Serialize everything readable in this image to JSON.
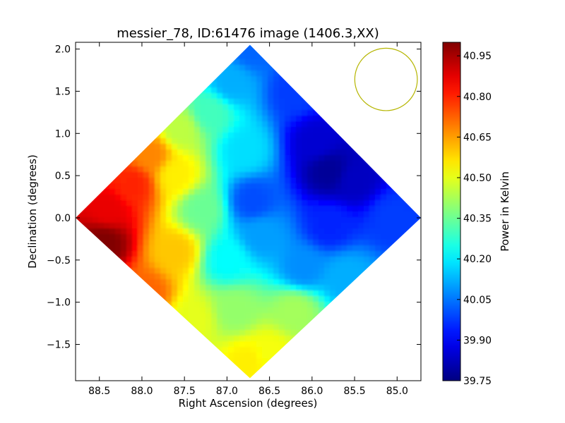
{
  "chart_data": {
    "type": "heatmap",
    "title": "messier_78, ID:61476 image (1406.3,XX)",
    "xlabel": "Right Ascension (degrees)",
    "ylabel": "Declination (degrees)",
    "xlim": [
      88.78,
      84.72
    ],
    "ylim": [
      -1.93,
      2.08
    ],
    "x_ticks": [
      88.5,
      88.0,
      87.5,
      87.0,
      86.5,
      86.0,
      85.5,
      85.0
    ],
    "x_tick_labels": [
      "88.5",
      "88.0",
      "87.5",
      "87.0",
      "86.5",
      "86.0",
      "85.5",
      "85.0"
    ],
    "y_ticks": [
      2.0,
      1.5,
      1.0,
      0.5,
      0.0,
      -0.5,
      -1.0,
      -1.5
    ],
    "y_tick_labels": [
      "2.0",
      "1.5",
      "1.0",
      "0.5",
      "0.0",
      "−0.5",
      "−1.0",
      "−1.5"
    ],
    "colorbar": {
      "label": "Power in Kelvin",
      "colormap": "jet",
      "range": [
        39.75,
        41.0
      ],
      "ticks": [
        40.95,
        40.8,
        40.65,
        40.5,
        40.35,
        40.2,
        40.05,
        39.9,
        39.75
      ],
      "tick_labels": [
        "40.95",
        "40.80",
        "40.65",
        "40.50",
        "40.35",
        "40.20",
        "40.05",
        "39.90",
        "39.75"
      ]
    },
    "footprint": {
      "shape": "diamond",
      "vertices_radec": [
        [
          86.73,
          2.05
        ],
        [
          84.72,
          0.0
        ],
        [
          86.73,
          -1.9
        ],
        [
          88.78,
          0.0
        ]
      ]
    },
    "beam": {
      "center_radec": [
        85.13,
        1.64
      ],
      "radius_deg": 0.37,
      "color": "#b5b500"
    },
    "value_samples": [
      {
        "ra": 88.45,
        "dec": -0.3,
        "value": 41.0
      },
      {
        "ra": 88.4,
        "dec": 0.1,
        "value": 40.87
      },
      {
        "ra": 88.1,
        "dec": 0.4,
        "value": 40.8
      },
      {
        "ra": 87.9,
        "dec": 0.75,
        "value": 40.68
      },
      {
        "ra": 87.6,
        "dec": 0.5,
        "value": 40.55
      },
      {
        "ra": 87.6,
        "dec": -0.4,
        "value": 40.6
      },
      {
        "ra": 87.95,
        "dec": -0.9,
        "value": 40.72
      },
      {
        "ra": 87.55,
        "dec": 1.05,
        "value": 40.45
      },
      {
        "ra": 87.2,
        "dec": 1.25,
        "value": 40.3
      },
      {
        "ra": 87.3,
        "dec": 0.1,
        "value": 40.35
      },
      {
        "ra": 86.95,
        "dec": 1.6,
        "value": 40.12
      },
      {
        "ra": 86.7,
        "dec": 2.0,
        "value": 40.03
      },
      {
        "ra": 86.8,
        "dec": 0.8,
        "value": 40.18
      },
      {
        "ra": 86.7,
        "dec": 0.2,
        "value": 40.0
      },
      {
        "ra": 86.2,
        "dec": 1.5,
        "value": 39.98
      },
      {
        "ra": 85.95,
        "dec": 0.9,
        "value": 39.85
      },
      {
        "ra": 85.8,
        "dec": 0.55,
        "value": 39.78
      },
      {
        "ra": 85.5,
        "dec": 0.45,
        "value": 39.83
      },
      {
        "ra": 85.8,
        "dec": -0.1,
        "value": 39.95
      },
      {
        "ra": 85.05,
        "dec": 0.0,
        "value": 39.98
      },
      {
        "ra": 86.1,
        "dec": -0.6,
        "value": 40.08
      },
      {
        "ra": 85.6,
        "dec": -0.7,
        "value": 40.12
      },
      {
        "ra": 87.0,
        "dec": -0.5,
        "value": 40.22
      },
      {
        "ra": 86.6,
        "dec": -0.2,
        "value": 40.1
      },
      {
        "ra": 86.9,
        "dec": -1.1,
        "value": 40.4
      },
      {
        "ra": 86.2,
        "dec": -1.1,
        "value": 40.42
      },
      {
        "ra": 86.75,
        "dec": -1.7,
        "value": 40.55
      },
      {
        "ra": 87.4,
        "dec": -1.2,
        "value": 40.5
      },
      {
        "ra": 86.5,
        "dec": -1.6,
        "value": 40.52
      }
    ]
  }
}
